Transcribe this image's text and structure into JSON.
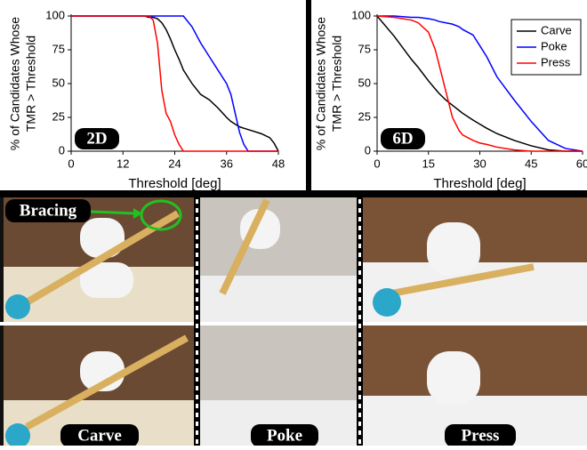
{
  "chart_data": [
    {
      "type": "line",
      "badge": "2D",
      "xlabel": "Threshold [deg]",
      "ylabel": [
        "% of Candidates Whose",
        "TMR > Threshold"
      ],
      "x": [
        0,
        4,
        8,
        12,
        16,
        17,
        18,
        19,
        20,
        21,
        22,
        23,
        24,
        25,
        26,
        28,
        30,
        32,
        34,
        36,
        37,
        38,
        39,
        40,
        41,
        42,
        44,
        46,
        47,
        48
      ],
      "series": [
        {
          "color": "#000000",
          "values": [
            100,
            100,
            100,
            100,
            100,
            100,
            99,
            99,
            98,
            95,
            90,
            83,
            75,
            68,
            60,
            50,
            42,
            38,
            32,
            25,
            22,
            20,
            18,
            17,
            16,
            15,
            13,
            10,
            6,
            0
          ]
        },
        {
          "color": "#0000ff",
          "values": [
            100,
            100,
            100,
            100,
            100,
            100,
            100,
            100,
            100,
            100,
            100,
            100,
            100,
            100,
            100,
            92,
            80,
            70,
            60,
            50,
            42,
            28,
            14,
            5,
            0,
            0,
            0,
            0,
            0,
            0
          ]
        },
        {
          "color": "#ff0000",
          "values": [
            100,
            100,
            100,
            100,
            100,
            100,
            100,
            97,
            80,
            45,
            28,
            22,
            12,
            5,
            0,
            0,
            0,
            0,
            0,
            0,
            0,
            0,
            0,
            0,
            0,
            0,
            0,
            0,
            0,
            0
          ]
        }
      ],
      "xlim": [
        0,
        48
      ],
      "ylim": [
        0,
        100
      ],
      "xticks": [
        0,
        12,
        24,
        36,
        48
      ],
      "yticks": [
        0,
        25,
        50,
        75,
        100
      ]
    },
    {
      "type": "line",
      "badge": "6D",
      "xlabel": "Threshold [deg]",
      "ylabel": [
        "% of Candidates Whose",
        "TMR > Threshold"
      ],
      "x": [
        0,
        5,
        10,
        12,
        15,
        17,
        18,
        20,
        22,
        24,
        25,
        28,
        30,
        32,
        35,
        40,
        45,
        50,
        55,
        60
      ],
      "series": [
        {
          "name": "Carve",
          "color": "#000000",
          "values": [
            100,
            85,
            68,
            62,
            52,
            46,
            43,
            38,
            34,
            30,
            28,
            23,
            20,
            17,
            13,
            8,
            4,
            1,
            0,
            0
          ]
        },
        {
          "name": "Poke",
          "color": "#0000ff",
          "values": [
            100,
            100,
            99,
            99,
            98,
            97,
            96,
            95,
            94,
            92,
            90,
            86,
            78,
            70,
            55,
            38,
            22,
            8,
            2,
            0
          ]
        },
        {
          "name": "Press",
          "color": "#ff0000",
          "values": [
            100,
            99,
            97,
            95,
            88,
            75,
            65,
            45,
            25,
            15,
            12,
            8,
            6,
            5,
            3,
            1,
            0,
            0,
            0,
            0
          ]
        }
      ],
      "xlim": [
        0,
        60
      ],
      "ylim": [
        0,
        100
      ],
      "xticks": [
        0,
        15,
        30,
        45,
        60
      ],
      "yticks": [
        0,
        25,
        50,
        75,
        100
      ],
      "legend": "upper right"
    }
  ],
  "photo_panel": {
    "annotation": "Bracing",
    "captions": [
      "Carve",
      "Poke",
      "Press"
    ]
  }
}
